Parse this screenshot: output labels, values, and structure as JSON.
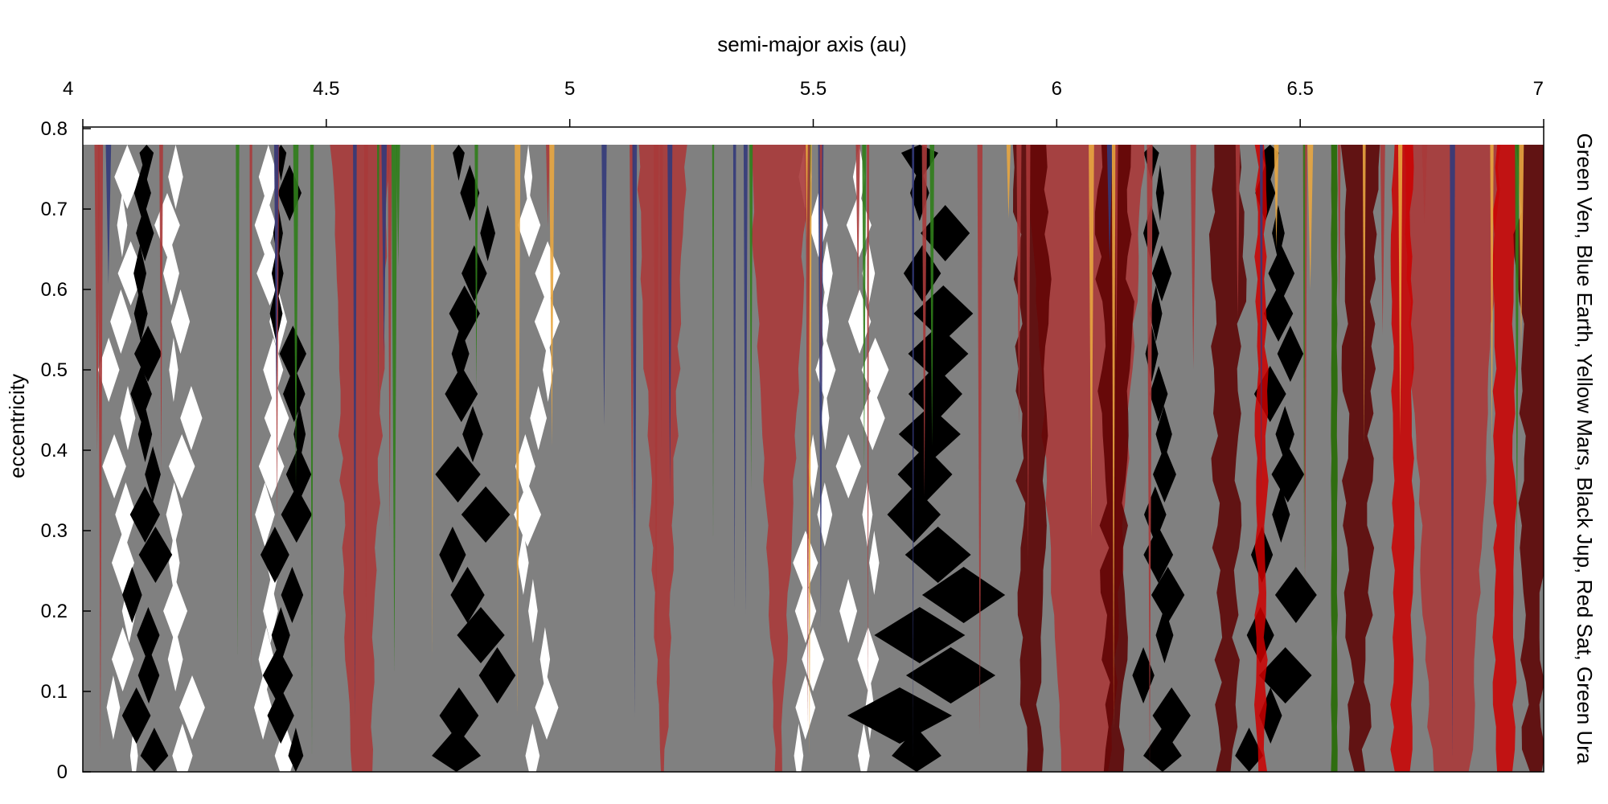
{
  "chart_data": {
    "type": "heatmap",
    "title": "",
    "xlabel": "semi-major axis (au)",
    "ylabel": "eccentricity",
    "right_label": "Green Ven, Blue Earth, Yellow Mars, Black Jup, Red Sat, Green Ura",
    "xlim": [
      4,
      7
    ],
    "ylim": [
      0,
      0.8
    ],
    "x_ticks": [
      "4",
      "4.5",
      "5",
      "5.5",
      "6",
      "6.5",
      "7"
    ],
    "x_tick_values": [
      4,
      4.5,
      5,
      5.5,
      6,
      6.5,
      7
    ],
    "y_ticks": [
      "0",
      "0.1",
      "0.2",
      "0.3",
      "0.4",
      "0.5",
      "0.6",
      "0.7",
      "0.8"
    ],
    "y_tick_values": [
      0,
      0.1,
      0.2,
      0.3,
      0.4,
      0.5,
      0.6,
      0.7,
      0.8
    ],
    "data_ymax": 0.78,
    "x_axis_position": "top",
    "colors": {
      "background_stable": "#ffffff",
      "unstable": "#808080",
      "venus": "#2f7d1a",
      "earth": "#333a7a",
      "mars": "#e8a640",
      "jupiter": "#000000",
      "saturn": "#a83a3a",
      "saturn_dark": "#5c0000",
      "saturn_light": "#e08080",
      "saturn_bright": "#cc0000",
      "uranus": "#2f6d10"
    },
    "regions": [
      {
        "planet": "Saturn",
        "shade": "saturn",
        "a_center": 4.57,
        "a_halfwidth_top": 0.06,
        "a_halfwidth_bottom": 0.02
      },
      {
        "planet": "Saturn",
        "shade": "saturn",
        "a_center": 5.19,
        "a_halfwidth_top": 0.05,
        "a_halfwidth_bottom": 0.005
      },
      {
        "planet": "Saturn",
        "shade": "saturn",
        "a_center": 5.43,
        "a_halfwidth_top": 0.06,
        "a_halfwidth_bottom": 0.005
      },
      {
        "planet": "Saturn",
        "shade": "saturn",
        "a_center": 6.06,
        "a_halfwidth_top": 0.12,
        "a_halfwidth_bottom": 0.05
      },
      {
        "planet": "Saturn",
        "shade": "saturn",
        "a_center": 6.81,
        "a_halfwidth_top": 0.1,
        "a_halfwidth_bottom": 0.04
      },
      {
        "planet": "Saturn",
        "shade": "saturn_bright",
        "a_center": 6.42,
        "a_halfwidth_top": 0.01,
        "a_halfwidth_bottom": 0.01
      },
      {
        "planet": "Saturn",
        "shade": "saturn_bright",
        "a_center": 6.71,
        "a_halfwidth_top": 0.02,
        "a_halfwidth_bottom": 0.02
      },
      {
        "planet": "Saturn",
        "shade": "saturn_bright",
        "a_center": 6.92,
        "a_halfwidth_top": 0.02,
        "a_halfwidth_bottom": 0.02
      },
      {
        "planet": "Jupiter",
        "shade": "jupiter",
        "a_center": 4.12,
        "a_halfwidth_top": 0.03,
        "a_halfwidth_bottom": 0.05
      },
      {
        "planet": "Jupiter",
        "shade": "jupiter",
        "a_center": 4.42,
        "a_halfwidth_top": 0.03,
        "a_halfwidth_bottom": 0.05
      },
      {
        "planet": "Jupiter",
        "shade": "jupiter",
        "a_center": 4.8,
        "a_halfwidth_top": 0.04,
        "a_halfwidth_bottom": 0.08
      },
      {
        "planet": "Jupiter",
        "shade": "jupiter",
        "a_center": 5.73,
        "a_halfwidth_top": 0.05,
        "a_halfwidth_bottom": 0.15
      },
      {
        "planet": "Jupiter",
        "shade": "jupiter",
        "a_center": 6.2,
        "a_halfwidth_top": 0.02,
        "a_halfwidth_bottom": 0.06
      },
      {
        "planet": "Jupiter",
        "shade": "jupiter",
        "a_center": 6.45,
        "a_halfwidth_top": 0.03,
        "a_halfwidth_bottom": 0.08
      },
      {
        "planet": "Uranus",
        "shade": "uranus",
        "a_center": 6.57,
        "a_halfwidth_top": 0.006,
        "a_halfwidth_bottom": 0.006
      }
    ]
  }
}
